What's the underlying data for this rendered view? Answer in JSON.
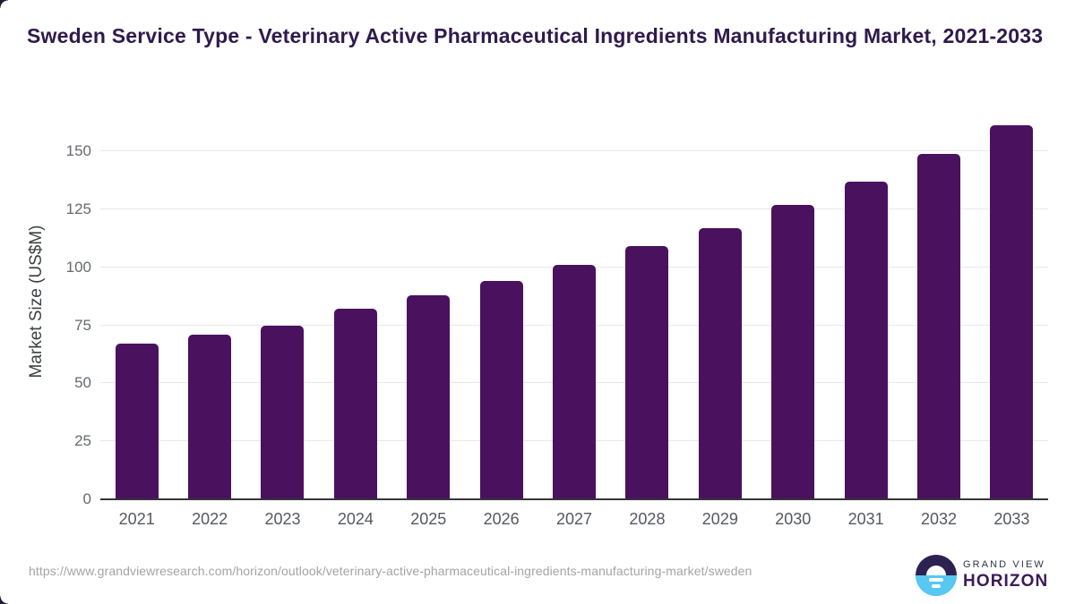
{
  "header": {
    "title": "Sweden Service Type - Veterinary Active Pharmaceutical Ingredients Manufacturing Market, 2021-2033"
  },
  "chart_data": {
    "type": "bar",
    "title": "Sweden Service Type - Veterinary Active Pharmaceutical Ingredients Manufacturing Market, 2021-2033",
    "categories": [
      "2021",
      "2022",
      "2023",
      "2024",
      "2025",
      "2026",
      "2027",
      "2028",
      "2029",
      "2030",
      "2031",
      "2032",
      "2033"
    ],
    "values": [
      67,
      71,
      75,
      82,
      88,
      94,
      101,
      109,
      117,
      127,
      137,
      149,
      161
    ],
    "xlabel": "",
    "ylabel": "Market Size (US$M)",
    "ylim": [
      0,
      163
    ],
    "yticks": [
      0,
      25,
      50,
      75,
      100,
      125,
      150
    ],
    "grid": "horizontal gridlines on",
    "legend": "none",
    "bar_color": "#4a115e"
  },
  "footer": {
    "source_url": "https://www.grandviewresearch.com/horizon/outlook/veterinary-active-pharmaceutical-ingredients-manufacturing-market/sweden",
    "logo": {
      "top_text": "GRAND VIEW",
      "bottom_text": "HORIZON"
    }
  },
  "colors": {
    "bar": "#4a115e",
    "title_text": "#2f1a4c",
    "y_tick_text": "#66696e",
    "x_tick_text": "#55585e",
    "axis_title_text": "#3d4043",
    "gridline": "#e8e8ea",
    "axis_line": "#35363a",
    "url_text": "#a4a4a4",
    "logo_dark_half": "#2c2150",
    "logo_blue_half": "#58c7f2",
    "logo_grand_view_text": "#32334d",
    "logo_horizon_text": "#3b1b58"
  }
}
